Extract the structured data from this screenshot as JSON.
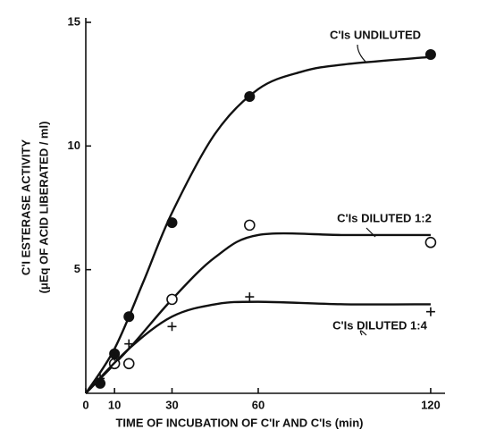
{
  "chart_data": {
    "type": "scatter",
    "xlabel": "TIME OF INCUBATION OF C'Ir AND C'Is (min)",
    "ylabel": [
      "C'I ESTERASE ACTIVITY",
      "(μEq OF ACID LIBERATED / ml)"
    ],
    "xlim": [
      0,
      125
    ],
    "xticks": [
      0,
      10,
      30,
      60,
      120
    ],
    "ylim": [
      0,
      15
    ],
    "yticks": [
      5,
      10,
      15
    ],
    "color": "#111111",
    "series": [
      {
        "name": "C'Is UNDILUTED",
        "marker": "filled-circle",
        "x": [
          5,
          10,
          15,
          30,
          57,
          120
        ],
        "values": [
          0.4,
          1.6,
          3.1,
          6.9,
          12.0,
          13.7
        ],
        "fit_x": [
          0,
          10,
          20,
          30,
          45,
          60,
          75,
          90,
          120
        ],
        "fit_values": [
          0,
          1.8,
          4.5,
          7.3,
          10.5,
          12.3,
          13.0,
          13.3,
          13.6
        ]
      },
      {
        "name": "C'Is DILUTED 1:2",
        "marker": "open-circle",
        "x": [
          10,
          15,
          30,
          57,
          120
        ],
        "values": [
          1.2,
          1.2,
          3.8,
          6.8,
          6.1
        ],
        "fit_x": [
          0,
          15,
          30,
          45,
          60,
          90,
          120
        ],
        "fit_values": [
          0,
          1.8,
          3.8,
          5.5,
          6.4,
          6.4,
          6.4
        ]
      },
      {
        "name": "C'Is DILUTED 1:4",
        "marker": "plus",
        "x": [
          5,
          10,
          15,
          30,
          57,
          120
        ],
        "values": [
          0.6,
          1.5,
          2.0,
          2.7,
          3.9,
          3.3
        ],
        "fit_x": [
          0,
          15,
          30,
          45,
          60,
          90,
          120
        ],
        "fit_values": [
          0,
          1.8,
          3.1,
          3.6,
          3.7,
          3.6,
          3.6
        ]
      }
    ]
  }
}
